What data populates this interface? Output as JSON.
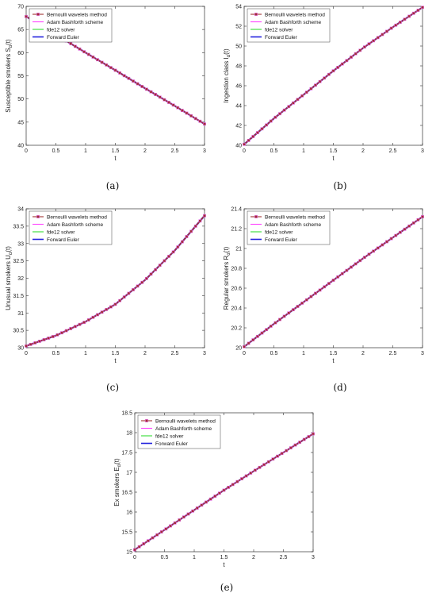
{
  "legend": [
    "Bernoulli wavelets method",
    "Adam Bashforth scheme",
    "fde12 solver",
    "Forward Euler"
  ],
  "colors": {
    "bernoulli": "#a03232",
    "bernoulli_marker_edge": "#e060e0",
    "adam": "#ff40ff",
    "fde12": "#33dd33",
    "euler": "#2222dd"
  },
  "captions": [
    "(a)",
    "(b)",
    "(c)",
    "(d)",
    "(e)"
  ],
  "chart_data": [
    {
      "type": "line",
      "panel": "a",
      "xlabel": "t",
      "ylabel": "Susceptible smokers S_α(t)",
      "xlim": [
        0,
        3
      ],
      "ylim": [
        40,
        70
      ],
      "xticks": [
        "0",
        "0.5",
        "1",
        "1.5",
        "2",
        "2.5",
        "3"
      ],
      "yticks": [
        "40",
        "45",
        "50",
        "55",
        "60",
        "65",
        "70"
      ],
      "x": [
        0,
        0.5,
        1,
        1.5,
        2,
        2.5,
        3
      ],
      "series": [
        {
          "name": "Bernoulli wavelets method",
          "values": [
            67.8,
            63.9,
            60.0,
            56.2,
            52.3,
            48.5,
            44.6
          ]
        },
        {
          "name": "Adam Bashforth scheme",
          "values": [
            67.8,
            63.9,
            60.0,
            56.2,
            52.3,
            48.5,
            44.6
          ]
        },
        {
          "name": "fde12 solver",
          "values": [
            67.8,
            63.9,
            60.0,
            56.2,
            52.3,
            48.5,
            44.6
          ]
        },
        {
          "name": "Forward Euler",
          "values": [
            67.8,
            63.9,
            60.0,
            56.2,
            52.3,
            48.5,
            44.6
          ]
        }
      ]
    },
    {
      "type": "line",
      "panel": "b",
      "xlabel": "t",
      "ylabel": "Ingestion class I_α(t)",
      "xlim": [
        0,
        3
      ],
      "ylim": [
        40,
        54
      ],
      "xticks": [
        "0",
        "0.5",
        "1",
        "1.5",
        "2",
        "2.5",
        "3"
      ],
      "yticks": [
        "40",
        "42",
        "44",
        "46",
        "48",
        "50",
        "52",
        "54"
      ],
      "x": [
        0,
        0.5,
        1,
        1.5,
        2,
        2.5,
        3
      ],
      "series": [
        {
          "name": "Bernoulli wavelets method",
          "values": [
            40.1,
            42.7,
            45.1,
            47.5,
            49.8,
            51.9,
            53.9
          ]
        },
        {
          "name": "Adam Bashforth scheme",
          "values": [
            40.1,
            42.7,
            45.1,
            47.5,
            49.8,
            51.9,
            53.9
          ]
        },
        {
          "name": "fde12 solver",
          "values": [
            40.1,
            42.7,
            45.1,
            47.5,
            49.8,
            51.9,
            53.9
          ]
        },
        {
          "name": "Forward Euler",
          "values": [
            40.1,
            42.7,
            45.1,
            47.5,
            49.8,
            51.9,
            53.9
          ]
        }
      ]
    },
    {
      "type": "line",
      "panel": "c",
      "xlabel": "t",
      "ylabel": "Unusual smokers U_α(t)",
      "xlim": [
        0,
        3
      ],
      "ylim": [
        30,
        34
      ],
      "xticks": [
        "0",
        "0.5",
        "1",
        "1.5",
        "2",
        "2.5",
        "3"
      ],
      "yticks": [
        "30",
        "30.5",
        "31",
        "31.5",
        "32",
        "32.5",
        "33",
        "33.5",
        "34"
      ],
      "x": [
        0,
        0.5,
        1,
        1.5,
        2,
        2.5,
        3
      ],
      "series": [
        {
          "name": "Bernoulli wavelets method",
          "values": [
            30.05,
            30.35,
            30.75,
            31.25,
            31.95,
            32.8,
            33.8
          ]
        },
        {
          "name": "Adam Bashforth scheme",
          "values": [
            30.05,
            30.35,
            30.75,
            31.25,
            31.95,
            32.8,
            33.8
          ]
        },
        {
          "name": "fde12 solver",
          "values": [
            30.05,
            30.35,
            30.75,
            31.25,
            31.95,
            32.8,
            33.8
          ]
        },
        {
          "name": "Forward Euler",
          "values": [
            30.05,
            30.35,
            30.75,
            31.25,
            31.95,
            32.8,
            33.8
          ]
        }
      ]
    },
    {
      "type": "line",
      "panel": "d",
      "xlabel": "t",
      "ylabel": "Regular smokers R_α(t)",
      "xlim": [
        0,
        3
      ],
      "ylim": [
        20,
        21.4
      ],
      "xticks": [
        "0",
        "0.5",
        "1",
        "1.5",
        "2",
        "2.5",
        "3"
      ],
      "yticks": [
        "20",
        "20.2",
        "20.4",
        "20.6",
        "20.8",
        "21",
        "21.2",
        "21.4"
      ],
      "x": [
        0,
        0.5,
        1,
        1.5,
        2,
        2.5,
        3
      ],
      "series": [
        {
          "name": "Bernoulli wavelets method",
          "values": [
            20.01,
            20.24,
            20.46,
            20.68,
            20.9,
            21.11,
            21.32
          ]
        },
        {
          "name": "Adam Bashforth scheme",
          "values": [
            20.01,
            20.24,
            20.46,
            20.68,
            20.9,
            21.11,
            21.32
          ]
        },
        {
          "name": "fde12 solver",
          "values": [
            20.01,
            20.24,
            20.46,
            20.68,
            20.9,
            21.11,
            21.32
          ]
        },
        {
          "name": "Forward Euler",
          "values": [
            20.01,
            20.24,
            20.46,
            20.68,
            20.9,
            21.11,
            21.32
          ]
        }
      ]
    },
    {
      "type": "line",
      "panel": "e",
      "xlabel": "t",
      "ylabel": "Ex smokers E_α(t)",
      "xlim": [
        0,
        3
      ],
      "ylim": [
        15,
        18.5
      ],
      "xticks": [
        "0",
        "0.5",
        "1",
        "1.5",
        "2",
        "2.5",
        "3"
      ],
      "yticks": [
        "15",
        "15.5",
        "16",
        "16.5",
        "17",
        "17.5",
        "18",
        "18.5"
      ],
      "x": [
        0,
        0.5,
        1,
        1.5,
        2,
        2.5,
        3
      ],
      "series": [
        {
          "name": "Bernoulli wavelets method",
          "values": [
            15.05,
            15.55,
            16.05,
            16.55,
            17.03,
            17.5,
            17.97
          ]
        },
        {
          "name": "Adam Bashforth scheme",
          "values": [
            15.05,
            15.55,
            16.05,
            16.55,
            17.03,
            17.5,
            17.97
          ]
        },
        {
          "name": "fde12 solver",
          "values": [
            15.05,
            15.55,
            16.05,
            16.55,
            17.03,
            17.5,
            17.97
          ]
        },
        {
          "name": "Forward Euler",
          "values": [
            15.05,
            15.55,
            16.05,
            16.55,
            17.03,
            17.5,
            17.97
          ]
        }
      ]
    }
  ]
}
